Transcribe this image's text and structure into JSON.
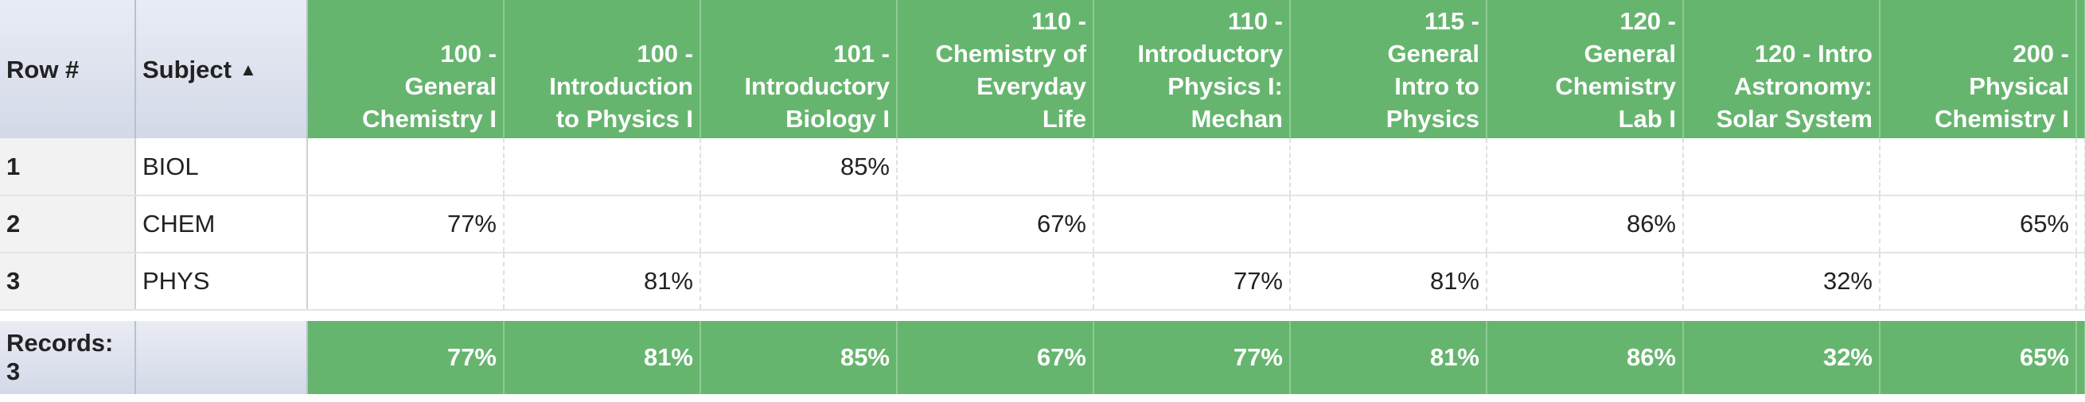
{
  "header": {
    "row_label": "Row #",
    "subject_label": "Subject",
    "columns": [
      [
        "100 -",
        "General",
        "Chemistry I"
      ],
      [
        "100 -",
        "Introduction",
        "to Physics I"
      ],
      [
        "101 -",
        "Introductory",
        "Biology I"
      ],
      [
        "110 -",
        "Chemistry of",
        "Everyday",
        "Life"
      ],
      [
        "110 -",
        "Introductory",
        "Physics I:",
        "Mechan"
      ],
      [
        "115 -",
        "General",
        "Intro to",
        "Physics"
      ],
      [
        "120 -",
        "General",
        "Chemistry",
        "Lab I"
      ],
      [
        "120 - Intro",
        "Astronomy:",
        "Solar System"
      ],
      [
        "200 -",
        "Physical",
        "Chemistry I"
      ]
    ]
  },
  "rows": [
    {
      "row": "1",
      "subject": "BIOL",
      "cells": [
        null,
        null,
        "85%",
        null,
        null,
        null,
        null,
        null,
        null
      ]
    },
    {
      "row": "2",
      "subject": "CHEM",
      "cells": [
        "77%",
        null,
        null,
        "67%",
        null,
        null,
        "86%",
        null,
        "65%"
      ]
    },
    {
      "row": "3",
      "subject": "PHYS",
      "cells": [
        null,
        "81%",
        null,
        null,
        "77%",
        "81%",
        null,
        "32%",
        null
      ]
    }
  ],
  "footer": {
    "label": "Records: 3",
    "totals": [
      "77%",
      "81%",
      "85%",
      "67%",
      "77%",
      "81%",
      "86%",
      "32%",
      "65%"
    ]
  }
}
